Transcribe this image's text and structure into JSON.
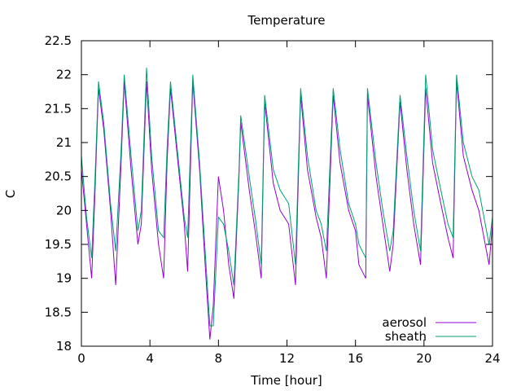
{
  "chart_data": {
    "type": "line",
    "title": "Temperature",
    "xlabel": "Time [hour]",
    "ylabel": "C",
    "xlim": [
      0,
      24
    ],
    "ylim": [
      18,
      22.5
    ],
    "xticks": [
      0,
      4,
      8,
      12,
      16,
      20,
      24
    ],
    "xtick_labels": [
      "0",
      "4",
      "8",
      "12",
      "16",
      "20",
      "24"
    ],
    "yticks": [
      18,
      18.5,
      19,
      19.5,
      20,
      20.5,
      21,
      21.5,
      22,
      22.5
    ],
    "ytick_labels": [
      "18",
      "18.5",
      "19",
      "19.5",
      "20",
      "20.5",
      "21",
      "21.5",
      "22",
      "22.5"
    ],
    "grid": false,
    "legend_position": "bottom-right",
    "series": [
      {
        "name": "aerosol",
        "color": "#9400d3",
        "points": [
          [
            0,
            20.6
          ],
          [
            0.3,
            19.8
          ],
          [
            0.6,
            19.0
          ],
          [
            0.8,
            20.3
          ],
          [
            1.0,
            21.8
          ],
          [
            1.3,
            21.2
          ],
          [
            1.7,
            20.0
          ],
          [
            2.0,
            18.9
          ],
          [
            2.3,
            20.6
          ],
          [
            2.5,
            21.9
          ],
          [
            2.9,
            20.6
          ],
          [
            3.3,
            19.5
          ],
          [
            3.5,
            19.8
          ],
          [
            3.8,
            21.9
          ],
          [
            4.1,
            20.6
          ],
          [
            4.5,
            19.5
          ],
          [
            4.8,
            19.0
          ],
          [
            5.0,
            20.7
          ],
          [
            5.2,
            21.8
          ],
          [
            5.6,
            20.8
          ],
          [
            6.0,
            19.8
          ],
          [
            6.2,
            19.1
          ],
          [
            6.5,
            21.9
          ],
          [
            6.9,
            20.6
          ],
          [
            7.2,
            19.3
          ],
          [
            7.5,
            18.1
          ],
          [
            7.7,
            18.6
          ],
          [
            8.0,
            20.5
          ],
          [
            8.3,
            20.0
          ],
          [
            8.6,
            19.2
          ],
          [
            8.9,
            18.7
          ],
          [
            9.2,
            20.5
          ],
          [
            9.3,
            21.3
          ],
          [
            9.8,
            20.3
          ],
          [
            10.2,
            19.6
          ],
          [
            10.5,
            19.0
          ],
          [
            10.7,
            21.6
          ],
          [
            11.2,
            20.4
          ],
          [
            11.6,
            20.0
          ],
          [
            12.1,
            19.8
          ],
          [
            12.5,
            18.9
          ],
          [
            12.8,
            21.7
          ],
          [
            13.2,
            20.6
          ],
          [
            13.7,
            19.9
          ],
          [
            14.0,
            19.6
          ],
          [
            14.3,
            19.0
          ],
          [
            14.7,
            21.7
          ],
          [
            15.1,
            20.7
          ],
          [
            15.6,
            20.0
          ],
          [
            16.0,
            19.7
          ],
          [
            16.2,
            19.2
          ],
          [
            16.6,
            19.0
          ],
          [
            16.7,
            21.7
          ],
          [
            17.2,
            20.5
          ],
          [
            17.6,
            19.8
          ],
          [
            18.0,
            19.1
          ],
          [
            18.2,
            19.5
          ],
          [
            18.6,
            21.6
          ],
          [
            19.0,
            20.6
          ],
          [
            19.4,
            19.8
          ],
          [
            19.8,
            19.2
          ],
          [
            20.1,
            21.8
          ],
          [
            20.5,
            20.7
          ],
          [
            20.9,
            20.2
          ],
          [
            21.4,
            19.6
          ],
          [
            21.7,
            19.3
          ],
          [
            21.9,
            21.9
          ],
          [
            22.3,
            20.8
          ],
          [
            22.8,
            20.3
          ],
          [
            23.2,
            20.0
          ],
          [
            23.5,
            19.6
          ],
          [
            23.8,
            19.2
          ],
          [
            24,
            19.8
          ]
        ]
      },
      {
        "name": "sheath",
        "color": "#009e73",
        "points": [
          [
            0,
            20.8
          ],
          [
            0.3,
            19.9
          ],
          [
            0.6,
            19.3
          ],
          [
            0.8,
            20.5
          ],
          [
            1.0,
            21.9
          ],
          [
            1.3,
            21.3
          ],
          [
            1.7,
            20.1
          ],
          [
            2.0,
            19.4
          ],
          [
            2.3,
            20.8
          ],
          [
            2.5,
            22.0
          ],
          [
            2.9,
            20.8
          ],
          [
            3.3,
            19.7
          ],
          [
            3.5,
            20.0
          ],
          [
            3.8,
            22.1
          ],
          [
            4.1,
            20.8
          ],
          [
            4.5,
            19.7
          ],
          [
            4.8,
            19.6
          ],
          [
            5.0,
            20.9
          ],
          [
            5.2,
            21.9
          ],
          [
            5.6,
            20.9
          ],
          [
            6.0,
            19.9
          ],
          [
            6.2,
            19.6
          ],
          [
            6.5,
            22.0
          ],
          [
            6.9,
            20.7
          ],
          [
            7.2,
            19.5
          ],
          [
            7.5,
            18.3
          ],
          [
            7.7,
            18.3
          ],
          [
            8.0,
            19.9
          ],
          [
            8.3,
            19.8
          ],
          [
            8.6,
            19.4
          ],
          [
            8.9,
            18.9
          ],
          [
            9.2,
            20.6
          ],
          [
            9.3,
            21.4
          ],
          [
            9.8,
            20.5
          ],
          [
            10.2,
            19.8
          ],
          [
            10.5,
            19.2
          ],
          [
            10.7,
            21.7
          ],
          [
            11.2,
            20.6
          ],
          [
            11.6,
            20.3
          ],
          [
            12.1,
            20.1
          ],
          [
            12.5,
            19.2
          ],
          [
            12.8,
            21.8
          ],
          [
            13.2,
            20.8
          ],
          [
            13.7,
            20.0
          ],
          [
            14.0,
            19.8
          ],
          [
            14.3,
            19.4
          ],
          [
            14.7,
            21.8
          ],
          [
            15.1,
            20.9
          ],
          [
            15.6,
            20.1
          ],
          [
            16.0,
            19.8
          ],
          [
            16.2,
            19.5
          ],
          [
            16.6,
            19.3
          ],
          [
            16.7,
            21.8
          ],
          [
            17.2,
            20.7
          ],
          [
            17.6,
            20.0
          ],
          [
            18.0,
            19.4
          ],
          [
            18.2,
            19.7
          ],
          [
            18.6,
            21.7
          ],
          [
            19.0,
            20.8
          ],
          [
            19.4,
            20.0
          ],
          [
            19.8,
            19.4
          ],
          [
            20.1,
            22.0
          ],
          [
            20.5,
            20.9
          ],
          [
            20.9,
            20.4
          ],
          [
            21.4,
            19.8
          ],
          [
            21.7,
            19.6
          ],
          [
            21.9,
            22.0
          ],
          [
            22.3,
            21.0
          ],
          [
            22.8,
            20.5
          ],
          [
            23.2,
            20.3
          ],
          [
            23.5,
            19.9
          ],
          [
            23.8,
            19.5
          ],
          [
            24,
            19.9
          ]
        ]
      }
    ]
  }
}
